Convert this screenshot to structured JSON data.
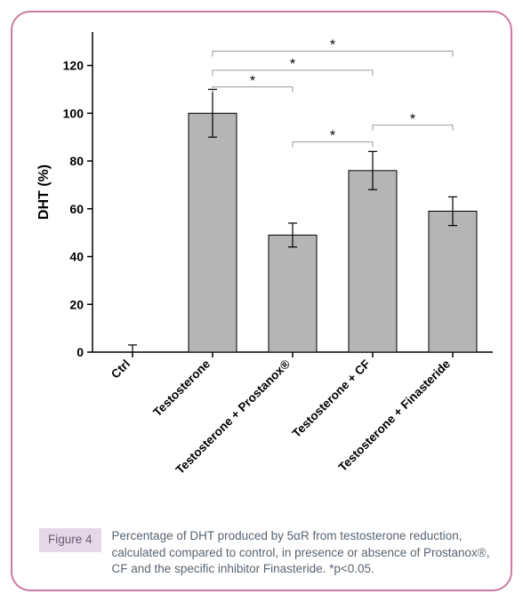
{
  "chart": {
    "type": "bar",
    "categories": [
      "Ctrl",
      "Testosterone",
      "Testosterone + Prostanox®",
      "Testosterone + CF",
      "Testosterone + Finasteride"
    ],
    "values": [
      0,
      100,
      49,
      76,
      59
    ],
    "error_upper": [
      3,
      10,
      5,
      8,
      6
    ],
    "error_lower": [
      0,
      10,
      5,
      8,
      6
    ],
    "bar_color": "#b5b5b5",
    "bar_stroke": "#000000",
    "bar_width": 0.6,
    "error_color": "#000000",
    "ylabel": "DHT (%)",
    "ylim": [
      0,
      120
    ],
    "ytick_step": 20,
    "xlim": [
      0.5,
      5.5
    ],
    "axis_color": "#000000",
    "axis_fontsize": 14,
    "label_fontsize": 16,
    "label_weight": "700",
    "label_rotation": -45,
    "background_color": "#ffffff",
    "significance_brackets": [
      {
        "from": 1,
        "to": 2,
        "y": 111,
        "label": "*"
      },
      {
        "from": 1,
        "to": 3,
        "y": 118,
        "label": "*"
      },
      {
        "from": 1,
        "to": 4,
        "y": 126,
        "label": "*"
      },
      {
        "from": 2,
        "to": 3,
        "y": 88,
        "label": "*"
      },
      {
        "from": 3,
        "to": 4,
        "y": 95,
        "label": "*"
      }
    ],
    "bracket_color": "#999999",
    "bracket_label_color": "#000000",
    "bracket_label_fontsize": 16
  },
  "caption": {
    "tag": "Figure 4",
    "text": "Percentage of DHT produced by 5αR from testosterone reduction, calculated compared to control, in presence or absence of Prostanox®, CF and the specific inhibitor Finasteride. *p<0.05."
  },
  "frame": {
    "border_color": "#cc7aa0"
  }
}
